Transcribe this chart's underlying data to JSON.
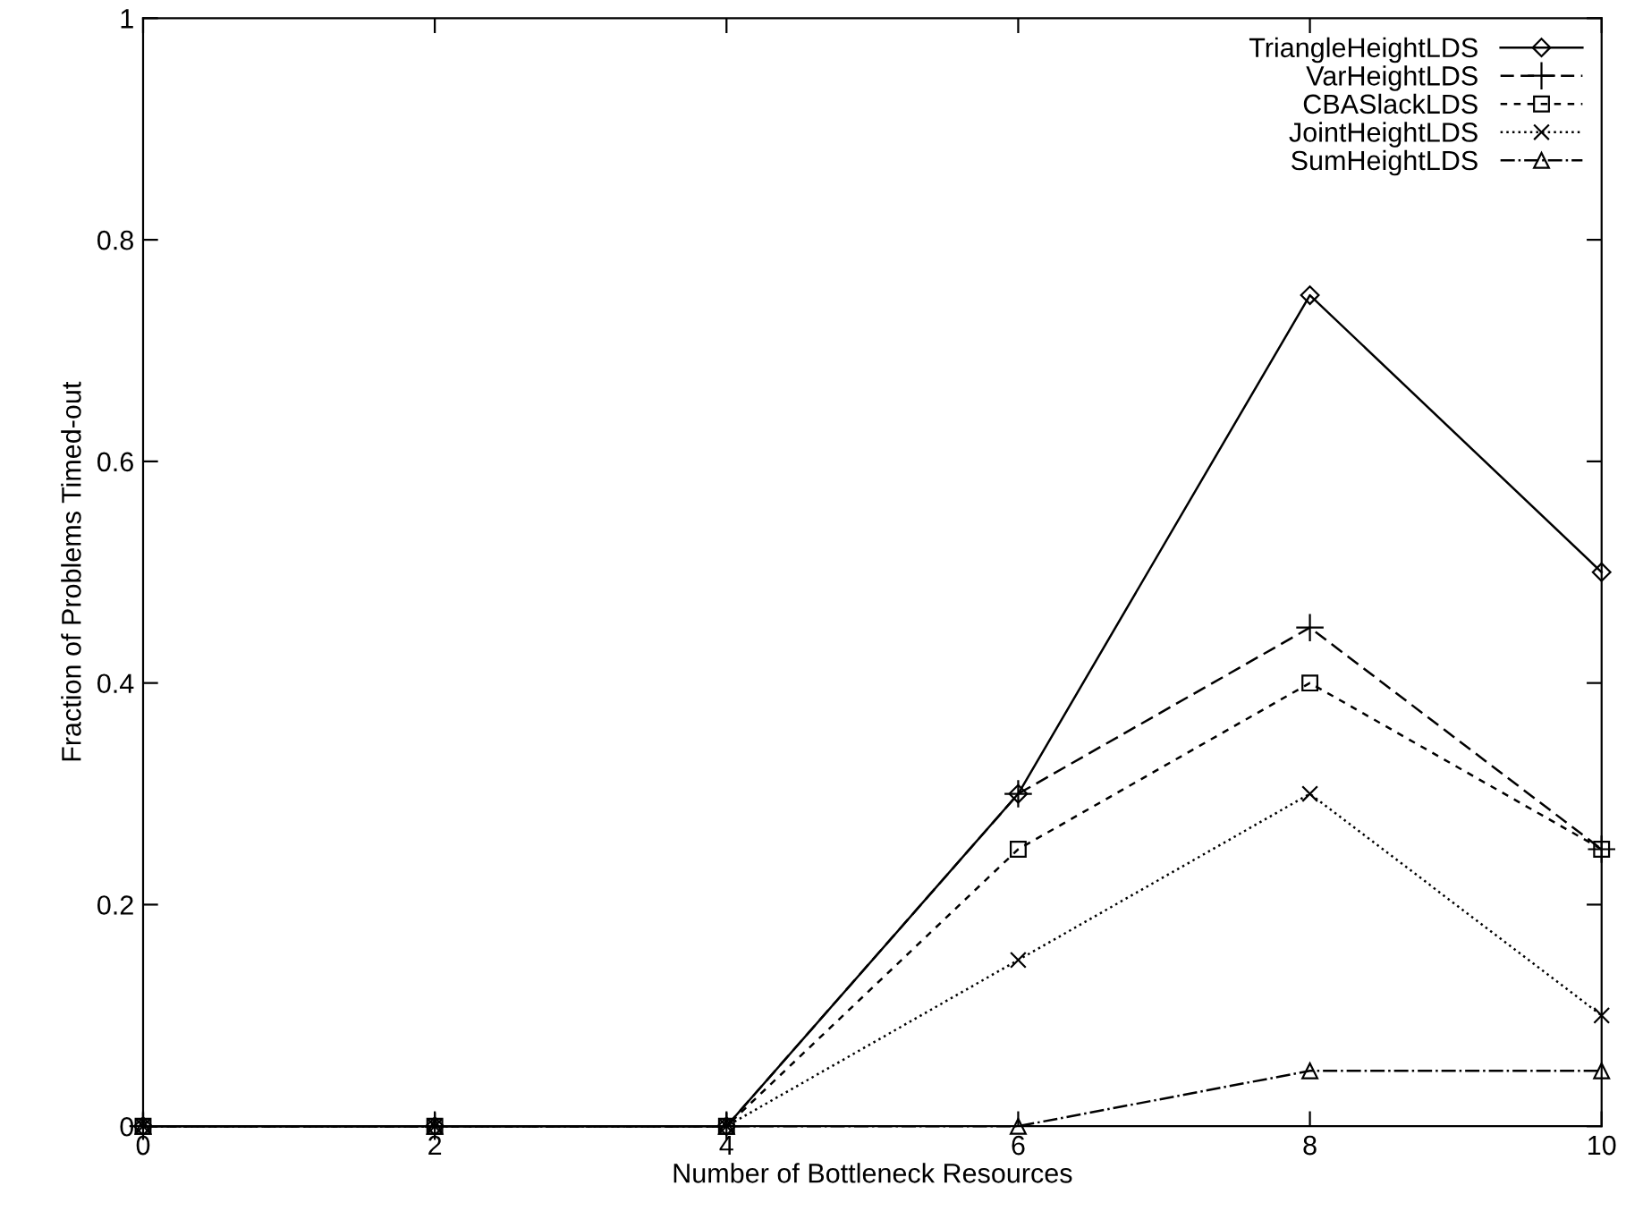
{
  "chart_data": {
    "type": "line",
    "xlabel": "Number of Bottleneck Resources",
    "ylabel": "Fraction of Problems Timed-out",
    "x": [
      0,
      2,
      4,
      6,
      8,
      10
    ],
    "series": [
      {
        "name": "TriangleHeightLDS",
        "color": "#000000",
        "marker": "diamond",
        "line_style": "solid",
        "values": [
          0,
          0,
          0,
          0.3,
          0.75,
          0.5
        ]
      },
      {
        "name": "VarHeightLDS",
        "color": "#000000",
        "marker": "plus",
        "line_style": "dashed",
        "values": [
          0,
          0,
          0,
          0.3,
          0.45,
          0.25
        ]
      },
      {
        "name": "CBASlackLDS",
        "color": "#000000",
        "marker": "square",
        "line_style": "dashed",
        "values": [
          0,
          0,
          0,
          0.25,
          0.4,
          0.25
        ]
      },
      {
        "name": "JointHeightLDS",
        "color": "#000000",
        "marker": "cross",
        "line_style": "dotted",
        "values": [
          0,
          0,
          0,
          0.15,
          0.3,
          0.1
        ]
      },
      {
        "name": "SumHeightLDS",
        "color": "#000000",
        "marker": "triangle",
        "line_style": "dashdot",
        "values": [
          0,
          0,
          0,
          0,
          0.05,
          0.05
        ]
      }
    ],
    "xlim": [
      0,
      10
    ],
    "ylim": [
      0,
      1
    ],
    "xticks": [
      0,
      2,
      4,
      6,
      8,
      10
    ],
    "yticks": [
      0,
      0.2,
      0.4,
      0.6,
      0.8,
      1
    ],
    "grid": false,
    "legend": "top right"
  }
}
